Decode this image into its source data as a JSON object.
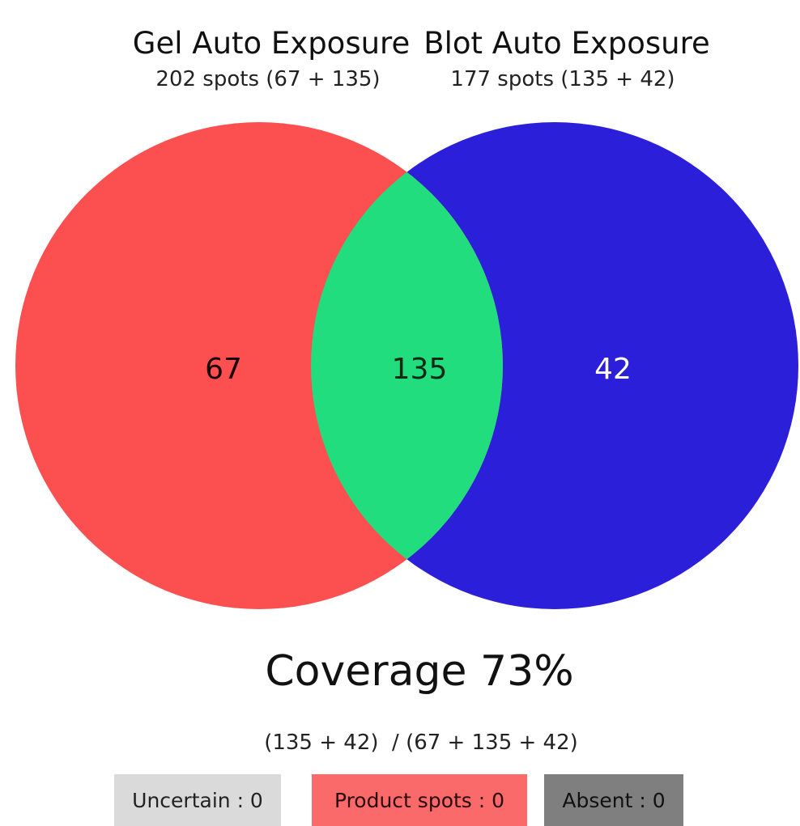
{
  "sets": [
    {
      "name": "Gel Auto Exposure",
      "subtitle": "202 spots (67 + 135)",
      "color": "#FC4F4F"
    },
    {
      "name": "Blot Auto Exposure",
      "subtitle": "177 spots (135 + 42)",
      "color": "#2B1FDA"
    }
  ],
  "regions": {
    "left_only": "67",
    "overlap": "135",
    "right_only": "42",
    "overlap_color": "#22DD7E"
  },
  "coverage": {
    "title": "Coverage 73%",
    "formula": "(135 + 42)  / (67 + 135 + 42)"
  },
  "legend": [
    {
      "label": "Uncertain : 0",
      "bg": "#DADADA",
      "fg": "#222222"
    },
    {
      "label": "Product spots : 0",
      "bg": "#FB6A6A",
      "fg": "#2A0A0A"
    },
    {
      "label": "Absent : 0",
      "bg": "#7F7F7F",
      "fg": "#111111"
    }
  ]
}
